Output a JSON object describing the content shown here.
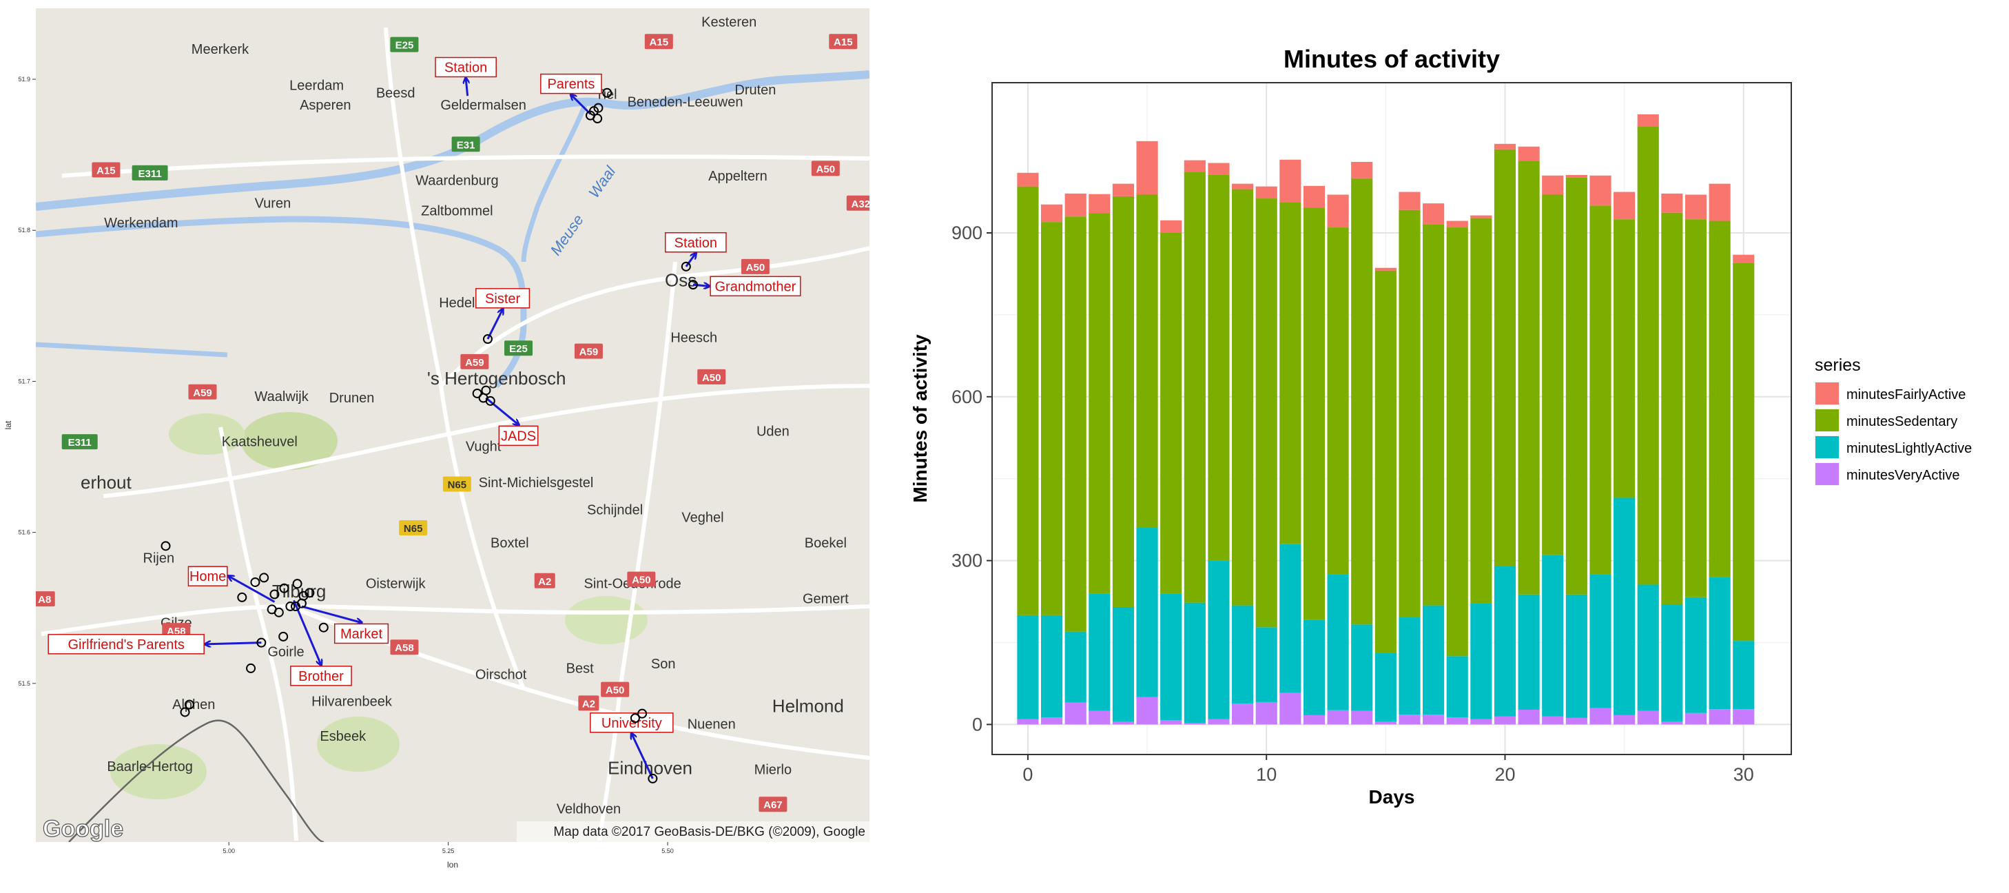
{
  "map": {
    "xlabel": "lon",
    "ylabel": "lat",
    "x_ticks": [
      {
        "lon": 5.0,
        "label": "5.00"
      },
      {
        "lon": 5.25,
        "label": "5.25"
      },
      {
        "lon": 5.5,
        "label": "5.50"
      }
    ],
    "y_ticks": [
      {
        "lat": 51.9,
        "label": "51.9"
      },
      {
        "lat": 51.8,
        "label": "51.8"
      },
      {
        "lat": 51.7,
        "label": "51.7"
      },
      {
        "lat": 51.6,
        "label": "51.6"
      },
      {
        "lat": 51.5,
        "label": "51.5"
      }
    ],
    "attribution": "Map data ©2017 GeoBasis-DE/BKG (©2009), Google",
    "logo": "Google",
    "place_names": [
      {
        "name": "Kesteren",
        "lon": 5.57,
        "lat": 51.935,
        "size": "md"
      },
      {
        "name": "Meerkerk",
        "lon": 4.99,
        "lat": 51.917,
        "size": "md"
      },
      {
        "name": "Leerdam",
        "lon": 5.1,
        "lat": 51.893,
        "size": "md"
      },
      {
        "name": "Beesd",
        "lon": 5.19,
        "lat": 51.888,
        "size": "md"
      },
      {
        "name": "Asperen",
        "lon": 5.11,
        "lat": 51.88,
        "size": "md"
      },
      {
        "name": "Geldermalsen",
        "lon": 5.29,
        "lat": 51.88,
        "size": "md"
      },
      {
        "name": "Tiel",
        "lon": 5.43,
        "lat": 51.887,
        "size": "md"
      },
      {
        "name": "Druten",
        "lon": 5.6,
        "lat": 51.89,
        "size": "md"
      },
      {
        "name": "Beneden-Leeuwen",
        "lon": 5.52,
        "lat": 51.882,
        "size": "md"
      },
      {
        "name": "Waardenburg",
        "lon": 5.26,
        "lat": 51.83,
        "size": "md"
      },
      {
        "name": "Vuren",
        "lon": 5.05,
        "lat": 51.815,
        "size": "md"
      },
      {
        "name": "Zaltbommel",
        "lon": 5.26,
        "lat": 51.81,
        "size": "md"
      },
      {
        "name": "Appeltern",
        "lon": 5.58,
        "lat": 51.833,
        "size": "md"
      },
      {
        "name": "Werkendam",
        "lon": 4.9,
        "lat": 51.802,
        "size": "md"
      },
      {
        "name": "Oss",
        "lon": 5.515,
        "lat": 51.763,
        "size": "lg"
      },
      {
        "name": "Hedel",
        "lon": 5.26,
        "lat": 51.749,
        "size": "md"
      },
      {
        "name": "Heesch",
        "lon": 5.53,
        "lat": 51.726,
        "size": "md"
      },
      {
        "name": "'s Hertogenbosch",
        "lon": 5.305,
        "lat": 51.698,
        "size": "lg"
      },
      {
        "name": "Waalwijk",
        "lon": 5.06,
        "lat": 51.687,
        "size": "md"
      },
      {
        "name": "Drunen",
        "lon": 5.14,
        "lat": 51.686,
        "size": "md"
      },
      {
        "name": "Kaatsheuvel",
        "lon": 5.035,
        "lat": 51.657,
        "size": "md"
      },
      {
        "name": "Uden",
        "lon": 5.62,
        "lat": 51.664,
        "size": "md"
      },
      {
        "name": "Vught",
        "lon": 5.29,
        "lat": 51.654,
        "size": "md"
      },
      {
        "name": "erhout",
        "lon": 4.86,
        "lat": 51.629,
        "size": "lg"
      },
      {
        "name": "Sint-Michielsgestel",
        "lon": 5.35,
        "lat": 51.63,
        "size": "md"
      },
      {
        "name": "Schijndel",
        "lon": 5.44,
        "lat": 51.612,
        "size": "md"
      },
      {
        "name": "Veghel",
        "lon": 5.54,
        "lat": 51.607,
        "size": "md"
      },
      {
        "name": "Boxtel",
        "lon": 5.32,
        "lat": 51.59,
        "size": "md"
      },
      {
        "name": "Boekel",
        "lon": 5.68,
        "lat": 51.59,
        "size": "md"
      },
      {
        "name": "Rijen",
        "lon": 4.92,
        "lat": 51.58,
        "size": "md"
      },
      {
        "name": "Oisterwijk",
        "lon": 5.19,
        "lat": 51.563,
        "size": "md"
      },
      {
        "name": "Sint-Oedenrode",
        "lon": 5.46,
        "lat": 51.563,
        "size": "md"
      },
      {
        "name": "Gemert",
        "lon": 5.68,
        "lat": 51.553,
        "size": "md"
      },
      {
        "name": "Tilburg",
        "lon": 5.08,
        "lat": 51.557,
        "size": "lg"
      },
      {
        "name": "Gilze",
        "lon": 4.94,
        "lat": 51.537,
        "size": "md"
      },
      {
        "name": "Goirle",
        "lon": 5.065,
        "lat": 51.518,
        "size": "md"
      },
      {
        "name": "Oirschot",
        "lon": 5.31,
        "lat": 51.503,
        "size": "md"
      },
      {
        "name": "Best",
        "lon": 5.4,
        "lat": 51.507,
        "size": "md"
      },
      {
        "name": "Son",
        "lon": 5.495,
        "lat": 51.51,
        "size": "md"
      },
      {
        "name": "Helmond",
        "lon": 5.66,
        "lat": 51.481,
        "size": "lg"
      },
      {
        "name": "Alphen",
        "lon": 4.96,
        "lat": 51.483,
        "size": "md"
      },
      {
        "name": "Hilvarenbeek",
        "lon": 5.14,
        "lat": 51.485,
        "size": "md"
      },
      {
        "name": "Nuenen",
        "lon": 5.55,
        "lat": 51.47,
        "size": "md"
      },
      {
        "name": "Esbeek",
        "lon": 5.13,
        "lat": 51.462,
        "size": "md"
      },
      {
        "name": "Eindhoven",
        "lon": 5.48,
        "lat": 51.44,
        "size": "lg"
      },
      {
        "name": "Mierlo",
        "lon": 5.62,
        "lat": 51.44,
        "size": "md"
      },
      {
        "name": "Baarle-Hertog",
        "lon": 4.91,
        "lat": 51.442,
        "size": "md"
      },
      {
        "name": "Veldhoven",
        "lon": 5.41,
        "lat": 51.414,
        "size": "md"
      },
      {
        "name": "Meuse",
        "lon": 5.39,
        "lat": 51.795,
        "size": "river"
      },
      {
        "name": "Waal",
        "lon": 5.43,
        "lat": 51.83,
        "size": "river"
      }
    ],
    "road_shields": [
      {
        "label": "E25",
        "lon": 5.2,
        "lat": 51.923,
        "color": "#3f8f3f"
      },
      {
        "label": "A15",
        "lon": 5.49,
        "lat": 51.925,
        "color": "#d85656"
      },
      {
        "label": "A15",
        "lon": 5.7,
        "lat": 51.925,
        "color": "#d85656"
      },
      {
        "label": "E31",
        "lon": 5.27,
        "lat": 51.857,
        "color": "#3f8f3f"
      },
      {
        "label": "A15",
        "lon": 4.86,
        "lat": 51.84,
        "color": "#d85656"
      },
      {
        "label": "E311",
        "lon": 4.91,
        "lat": 51.838,
        "color": "#3f8f3f"
      },
      {
        "label": "A50",
        "lon": 5.68,
        "lat": 51.841,
        "color": "#d85656"
      },
      {
        "label": "A32",
        "lon": 5.72,
        "lat": 51.818,
        "color": "#d85656"
      },
      {
        "label": "A50",
        "lon": 5.6,
        "lat": 51.776,
        "color": "#d85656"
      },
      {
        "label": "E25",
        "lon": 5.33,
        "lat": 51.722,
        "color": "#3f8f3f"
      },
      {
        "label": "A59",
        "lon": 5.41,
        "lat": 51.72,
        "color": "#d85656"
      },
      {
        "label": "A59",
        "lon": 5.28,
        "lat": 51.713,
        "color": "#d85656"
      },
      {
        "label": "A50",
        "lon": 5.55,
        "lat": 51.703,
        "color": "#d85656"
      },
      {
        "label": "A59",
        "lon": 4.97,
        "lat": 51.693,
        "color": "#d85656"
      },
      {
        "label": "E311",
        "lon": 4.83,
        "lat": 51.66,
        "color": "#3f8f3f"
      },
      {
        "label": "N65",
        "lon": 5.26,
        "lat": 51.632,
        "color": "#e8c020"
      },
      {
        "label": "N65",
        "lon": 5.21,
        "lat": 51.603,
        "color": "#e8c020"
      },
      {
        "label": "A2",
        "lon": 5.36,
        "lat": 51.568,
        "color": "#d85656"
      },
      {
        "label": "A50",
        "lon": 5.47,
        "lat": 51.569,
        "color": "#d85656"
      },
      {
        "label": "A8",
        "lon": 4.79,
        "lat": 51.556,
        "color": "#d85656"
      },
      {
        "label": "A58",
        "lon": 4.94,
        "lat": 51.535,
        "color": "#d85656"
      },
      {
        "label": "A58",
        "lon": 5.2,
        "lat": 51.524,
        "color": "#d85656"
      },
      {
        "label": "A50",
        "lon": 5.44,
        "lat": 51.496,
        "color": "#d85656"
      },
      {
        "label": "A2",
        "lon": 5.41,
        "lat": 51.487,
        "color": "#d85656"
      },
      {
        "label": "A67",
        "lon": 5.62,
        "lat": 51.42,
        "color": "#d85656"
      }
    ],
    "locations": [
      {
        "label": "Station",
        "lon": 5.27,
        "lat": 51.908,
        "from": [
          5.272,
          51.889
        ]
      },
      {
        "label": "Parents",
        "lon": 5.39,
        "lat": 51.897,
        "from": [
          5.412,
          51.877
        ]
      },
      {
        "label": "Station",
        "lon": 5.532,
        "lat": 51.792,
        "from": [
          5.521,
          51.776
        ]
      },
      {
        "label": "Grandmother",
        "lon": 5.6,
        "lat": 51.763,
        "from": [
          5.529,
          51.764
        ]
      },
      {
        "label": "Sister",
        "lon": 5.312,
        "lat": 51.755,
        "from": [
          5.295,
          51.728
        ]
      },
      {
        "label": "JADS",
        "lon": 5.33,
        "lat": 51.664,
        "from": [
          5.293,
          51.689
        ]
      },
      {
        "label": "Home",
        "lon": 4.976,
        "lat": 51.571,
        "from": [
          5.052,
          51.554
        ]
      },
      {
        "label": "Market",
        "lon": 5.151,
        "lat": 51.533,
        "from": [
          5.083,
          51.551
        ]
      },
      {
        "label": "Girlfriend's Parents",
        "lon": 4.883,
        "lat": 51.526,
        "from": [
          5.037,
          51.527
        ]
      },
      {
        "label": "Brother",
        "lon": 5.105,
        "lat": 51.505,
        "from": [
          5.074,
          51.555
        ]
      },
      {
        "label": "University",
        "lon": 5.459,
        "lat": 51.474,
        "from": [
          5.483,
          51.437
        ]
      }
    ],
    "points": [
      [
        5.412,
        51.876
      ],
      [
        5.416,
        51.879
      ],
      [
        5.421,
        51.881
      ],
      [
        5.42,
        51.874
      ],
      [
        5.431,
        51.891
      ],
      [
        5.521,
        51.776
      ],
      [
        5.529,
        51.764
      ],
      [
        5.295,
        51.728
      ],
      [
        5.283,
        51.692
      ],
      [
        5.29,
        51.689
      ],
      [
        5.298,
        51.687
      ],
      [
        5.293,
        51.694
      ],
      [
        4.928,
        51.591
      ],
      [
        5.04,
        51.57
      ],
      [
        5.03,
        51.567
      ],
      [
        5.015,
        51.557
      ],
      [
        5.052,
        51.559
      ],
      [
        5.063,
        51.563
      ],
      [
        5.078,
        51.566
      ],
      [
        5.085,
        51.558
      ],
      [
        5.092,
        51.56
      ],
      [
        5.083,
        51.553
      ],
      [
        5.07,
        51.551
      ],
      [
        5.057,
        51.547
      ],
      [
        5.049,
        51.549
      ],
      [
        5.062,
        51.531
      ],
      [
        5.108,
        51.537
      ],
      [
        5.037,
        51.527
      ],
      [
        5.025,
        51.51
      ],
      [
        5.076,
        51.551
      ],
      [
        4.95,
        51.481
      ],
      [
        4.955,
        51.486
      ],
      [
        5.463,
        51.477
      ],
      [
        5.471,
        51.48
      ],
      [
        5.483,
        51.437
      ]
    ]
  },
  "chart_data": {
    "type": "bar",
    "stacked": true,
    "title": "Minutes of activity",
    "xlabel": "Days",
    "ylabel": "Minutes of activity",
    "x": [
      0,
      1,
      2,
      3,
      4,
      5,
      6,
      7,
      8,
      9,
      10,
      11,
      12,
      13,
      14,
      15,
      16,
      17,
      18,
      19,
      20,
      21,
      22,
      23,
      24,
      25,
      26,
      27,
      28,
      29,
      30
    ],
    "xlim": [
      -1.5,
      32
    ],
    "ylim": [
      -55,
      1175
    ],
    "x_ticks": [
      0,
      10,
      20,
      30
    ],
    "y_ticks": [
      0,
      300,
      600,
      900
    ],
    "legend_title": "series",
    "legend_position": "right",
    "series": [
      {
        "name": "minutesVeryActive",
        "color": "#c77cff",
        "values": [
          10,
          13,
          40,
          25,
          5,
          50,
          8,
          3,
          10,
          38,
          41,
          58,
          17,
          26,
          25,
          5,
          18,
          18,
          13,
          10,
          15,
          27,
          15,
          12,
          30,
          17,
          25,
          5,
          21,
          28,
          28
        ]
      },
      {
        "name": "minutesLightlyActive",
        "color": "#00bfc4",
        "values": [
          190,
          187,
          130,
          215,
          210,
          310,
          232,
          220,
          290,
          180,
          137,
          272,
          175,
          249,
          158,
          126,
          178,
          200,
          112,
          212,
          275,
          211,
          295,
          226,
          245,
          398,
          231,
          215,
          212,
          242,
          125
        ]
      },
      {
        "name": "minutesSedentary",
        "color": "#7cae00",
        "values": [
          785,
          720,
          760,
          696,
          752,
          610,
          660,
          788,
          706,
          762,
          785,
          626,
          754,
          635,
          817,
          700,
          746,
          698,
          785,
          705,
          763,
          794,
          660,
          763,
          675,
          510,
          839,
          717,
          692,
          652,
          692
        ]
      },
      {
        "name": "minutesFairlyActive",
        "color": "#f8766d",
        "values": [
          25,
          32,
          42,
          35,
          23,
          98,
          23,
          22,
          22,
          10,
          22,
          78,
          40,
          60,
          30,
          5,
          33,
          38,
          12,
          5,
          10,
          26,
          35,
          5,
          55,
          50,
          22,
          35,
          45,
          68,
          15
        ]
      }
    ],
    "legend_order": [
      "minutesFairlyActive",
      "minutesSedentary",
      "minutesLightlyActive",
      "minutesVeryActive"
    ]
  }
}
